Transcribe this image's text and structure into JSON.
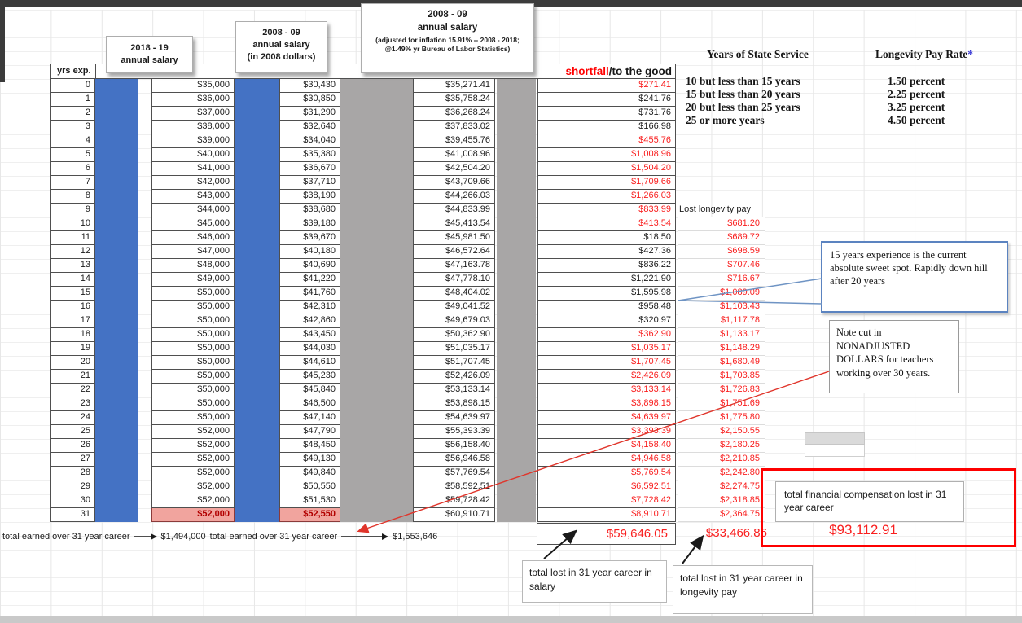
{
  "headers": {
    "yrs_exp": "yrs exp.",
    "box_2018_line1": "2018 - 19",
    "box_2018_line2": "annual salary",
    "box_2008_line1": "2008 - 09",
    "box_2008_line2": "annual salary",
    "box_2008_line3": "(in 2008 dollars)",
    "box_adj_line1": "2008 - 09",
    "box_adj_line2": "annual salary",
    "box_adj_note": "(adjusted for inflation 15.91% -- 2008 - 2018;  @1.49% yr Bureau of Labor Statistics)",
    "shortfall_red": "shortfall",
    "shortfall_rest": "/to the good"
  },
  "lost_longevity_label": "Lost longevity pay",
  "rows": [
    {
      "yrs": "0",
      "s18": "$35,000",
      "s08": "$30,430",
      "adj": "$35,271.41",
      "diff": "$271.41",
      "red": true,
      "lon": ""
    },
    {
      "yrs": "1",
      "s18": "$36,000",
      "s08": "$30,850",
      "adj": "$35,758.24",
      "diff": "$241.76",
      "red": false,
      "lon": ""
    },
    {
      "yrs": "2",
      "s18": "$37,000",
      "s08": "$31,290",
      "adj": "$36,268.24",
      "diff": "$731.76",
      "red": false,
      "lon": ""
    },
    {
      "yrs": "3",
      "s18": "$38,000",
      "s08": "$32,640",
      "adj": "$37,833.02",
      "diff": "$166.98",
      "red": false,
      "lon": ""
    },
    {
      "yrs": "4",
      "s18": "$39,000",
      "s08": "$34,040",
      "adj": "$39,455.76",
      "diff": "$455.76",
      "red": true,
      "lon": ""
    },
    {
      "yrs": "5",
      "s18": "$40,000",
      "s08": "$35,380",
      "adj": "$41,008.96",
      "diff": "$1,008.96",
      "red": true,
      "lon": ""
    },
    {
      "yrs": "6",
      "s18": "$41,000",
      "s08": "$36,670",
      "adj": "$42,504.20",
      "diff": "$1,504.20",
      "red": true,
      "lon": ""
    },
    {
      "yrs": "7",
      "s18": "$42,000",
      "s08": "$37,710",
      "adj": "$43,709.66",
      "diff": "$1,709.66",
      "red": true,
      "lon": ""
    },
    {
      "yrs": "8",
      "s18": "$43,000",
      "s08": "$38,190",
      "adj": "$44,266.03",
      "diff": "$1,266.03",
      "red": true,
      "lon": ""
    },
    {
      "yrs": "9",
      "s18": "$44,000",
      "s08": "$38,680",
      "adj": "$44,833.99",
      "diff": "$833.99",
      "red": true,
      "lon": "",
      "lonLabel": true
    },
    {
      "yrs": "10",
      "s18": "$45,000",
      "s08": "$39,180",
      "adj": "$45,413.54",
      "diff": "$413.54",
      "red": true,
      "lon": "$681.20"
    },
    {
      "yrs": "11",
      "s18": "$46,000",
      "s08": "$39,670",
      "adj": "$45,981.50",
      "diff": "$18.50",
      "red": false,
      "lon": "$689.72"
    },
    {
      "yrs": "12",
      "s18": "$47,000",
      "s08": "$40,180",
      "adj": "$46,572.64",
      "diff": "$427.36",
      "red": false,
      "lon": "$698.59"
    },
    {
      "yrs": "13",
      "s18": "$48,000",
      "s08": "$40,690",
      "adj": "$47,163.78",
      "diff": "$836.22",
      "red": false,
      "lon": "$707.46"
    },
    {
      "yrs": "14",
      "s18": "$49,000",
      "s08": "$41,220",
      "adj": "$47,778.10",
      "diff": "$1,221.90",
      "red": false,
      "lon": "$716.67"
    },
    {
      "yrs": "15",
      "s18": "$50,000",
      "s08": "$41,760",
      "adj": "$48,404.02",
      "diff": "$1,595.98",
      "red": false,
      "lon": "$1,089.09"
    },
    {
      "yrs": "16",
      "s18": "$50,000",
      "s08": "$42,310",
      "adj": "$49,041.52",
      "diff": "$958.48",
      "red": false,
      "lon": "$1,103.43"
    },
    {
      "yrs": "17",
      "s18": "$50,000",
      "s08": "$42,860",
      "adj": "$49,679.03",
      "diff": "$320.97",
      "red": false,
      "lon": "$1,117.78"
    },
    {
      "yrs": "18",
      "s18": "$50,000",
      "s08": "$43,450",
      "adj": "$50,362.90",
      "diff": "$362.90",
      "red": true,
      "lon": "$1,133.17"
    },
    {
      "yrs": "19",
      "s18": "$50,000",
      "s08": "$44,030",
      "adj": "$51,035.17",
      "diff": "$1,035.17",
      "red": true,
      "lon": "$1,148.29"
    },
    {
      "yrs": "20",
      "s18": "$50,000",
      "s08": "$44,610",
      "adj": "$51,707.45",
      "diff": "$1,707.45",
      "red": true,
      "lon": "$1,680.49"
    },
    {
      "yrs": "21",
      "s18": "$50,000",
      "s08": "$45,230",
      "adj": "$52,426.09",
      "diff": "$2,426.09",
      "red": true,
      "lon": "$1,703.85"
    },
    {
      "yrs": "22",
      "s18": "$50,000",
      "s08": "$45,840",
      "adj": "$53,133.14",
      "diff": "$3,133.14",
      "red": true,
      "lon": "$1,726.83"
    },
    {
      "yrs": "23",
      "s18": "$50,000",
      "s08": "$46,500",
      "adj": "$53,898.15",
      "diff": "$3,898.15",
      "red": true,
      "lon": "$1,751.69"
    },
    {
      "yrs": "24",
      "s18": "$50,000",
      "s08": "$47,140",
      "adj": "$54,639.97",
      "diff": "$4,639.97",
      "red": true,
      "lon": "$1,775.80"
    },
    {
      "yrs": "25",
      "s18": "$52,000",
      "s08": "$47,790",
      "adj": "$55,393.39",
      "diff": "$3,393.39",
      "red": true,
      "lon": "$2,150.55"
    },
    {
      "yrs": "26",
      "s18": "$52,000",
      "s08": "$48,450",
      "adj": "$56,158.40",
      "diff": "$4,158.40",
      "red": true,
      "lon": "$2,180.25"
    },
    {
      "yrs": "27",
      "s18": "$52,000",
      "s08": "$49,130",
      "adj": "$56,946.58",
      "diff": "$4,946.58",
      "red": true,
      "lon": "$2,210.85"
    },
    {
      "yrs": "28",
      "s18": "$52,000",
      "s08": "$49,840",
      "adj": "$57,769.54",
      "diff": "$5,769.54",
      "red": true,
      "lon": "$2,242.80"
    },
    {
      "yrs": "29",
      "s18": "$52,000",
      "s08": "$50,550",
      "adj": "$58,592.51",
      "diff": "$6,592.51",
      "red": true,
      "lon": "$2,274.75"
    },
    {
      "yrs": "30",
      "s18": "$52,000",
      "s08": "$51,530",
      "adj": "$59,728.42",
      "diff": "$7,728.42",
      "red": true,
      "lon": "$2,318.85"
    },
    {
      "yrs": "31",
      "s18": "$52,000",
      "s08": "$52,550",
      "adj": "$60,910.71",
      "diff": "$8,910.71",
      "red": true,
      "lon": "$2,364.75",
      "highlight": true
    }
  ],
  "totals": {
    "earned_2018_label": "total earned over 31 year career",
    "earned_2018_value": "$1,494,000",
    "earned_adj_label": "total earned over 31 year career",
    "earned_adj_value": "$1,553,646",
    "shortfall_total": "$59,646.05",
    "longevity_total": "$33,466.86"
  },
  "reference": {
    "col1_header": "Years of State Service",
    "col2_header": "Longevity Pay Rate",
    "col2_asterisk": "*",
    "rows": [
      {
        "service": "10 but less than 15 years",
        "rate": "1.50 percent"
      },
      {
        "service": "15 but less than 20 years",
        "rate": "2.25 percent"
      },
      {
        "service": "20 but less than 25 years",
        "rate": "3.25 percent"
      },
      {
        "service": "25 or more years",
        "rate": "4.50 percent"
      }
    ]
  },
  "callouts": {
    "sweet_spot": "15 years experience is the current absolute sweet spot. Rapidly down hill after 20 years",
    "nonadjusted": "Note cut in NONADJUSTED DOLLARS for teachers working over 30 years.",
    "grand_label": "total financial compensation lost in 31 year career",
    "grand_value": "$93,112.91",
    "lost_salary": "total lost in 31 year career in salary",
    "lost_longevity": "total lost in 31 year career in longevity pay"
  },
  "palette": {
    "column_blue": "#4472c4",
    "column_gray": "#a8a6a6",
    "highlight_pink": "#f1a49e",
    "shortfall_red": "#ff0000",
    "value_red": "#f91f1f",
    "pink_text_red": "#b20000"
  }
}
